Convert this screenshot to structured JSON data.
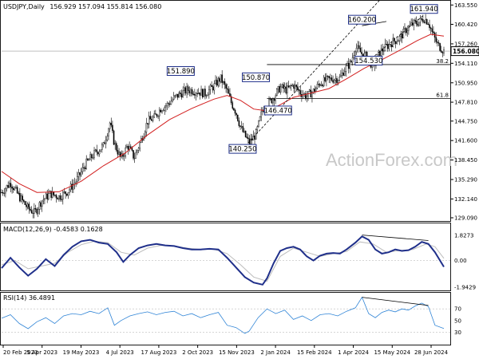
{
  "chart_data": {
    "type": "candlestick",
    "title": "USDJPY,Daily",
    "ohlc_readout": "156.929 157.094 155.814 156.080",
    "current_price": "156.080",
    "watermark": "ActionForex.com",
    "x_ticks": [
      "20 Feb 2023",
      "5 Apr 2023",
      "19 May 2023",
      "4 Jul 2023",
      "17 Aug 2023",
      "2 Oct 2023",
      "15 Nov 2023",
      "2 Jan 2024",
      "15 Feb 2024",
      "1 Apr 2024",
      "15 May 2024",
      "28 Jun 2024"
    ],
    "price_panel": {
      "y_ticks": [
        "163.550",
        "160.420",
        "157.260",
        "154.110",
        "150.950",
        "147.810",
        "144.750",
        "141.600",
        "138.450",
        "135.290",
        "132.140",
        "129.090"
      ],
      "ylim": [
        128.7,
        164.1
      ],
      "annotations": [
        {
          "label": "151.890",
          "value": 151.89,
          "anchor": 0.405
        },
        {
          "label": "140.250",
          "value": 140.25,
          "anchor": 0.545
        },
        {
          "label": "150.870",
          "value": 150.87,
          "anchor": 0.575
        },
        {
          "label": "146.470",
          "value": 146.47,
          "anchor": 0.625
        },
        {
          "label": "160.200",
          "value": 160.2,
          "anchor": 0.815
        },
        {
          "label": "154.530",
          "value": 154.53,
          "anchor": 0.83
        },
        {
          "label": "161.940",
          "value": 161.94,
          "anchor": 0.955
        }
      ],
      "fib_levels": [
        {
          "label": "38.2",
          "value": 153.9
        },
        {
          "label": "61.8",
          "value": 148.4
        }
      ],
      "series": [
        {
          "name": "Close",
          "color": "#000000",
          "points": [
            [
              0.0,
              133.2
            ],
            [
              0.02,
              134.8
            ],
            [
              0.04,
              132.5
            ],
            [
              0.06,
              130.6
            ],
            [
              0.075,
              129.9
            ],
            [
              0.09,
              131.8
            ],
            [
              0.11,
              133.0
            ],
            [
              0.13,
              132.5
            ],
            [
              0.15,
              133.4
            ],
            [
              0.17,
              135.2
            ],
            [
              0.19,
              137.8
            ],
            [
              0.21,
              139.5
            ],
            [
              0.23,
              140.7
            ],
            [
              0.245,
              144.5
            ],
            [
              0.255,
              141.1
            ],
            [
              0.27,
              138.6
            ],
            [
              0.285,
              140.8
            ],
            [
              0.3,
              138.8
            ],
            [
              0.315,
              141.6
            ],
            [
              0.33,
              144.7
            ],
            [
              0.345,
              145.3
            ],
            [
              0.36,
              146.8
            ],
            [
              0.375,
              147.4
            ],
            [
              0.39,
              148.5
            ],
            [
              0.405,
              149.2
            ],
            [
              0.42,
              149.8
            ],
            [
              0.44,
              149.6
            ],
            [
              0.46,
              149.2
            ],
            [
              0.48,
              150.4
            ],
            [
              0.495,
              151.7
            ],
            [
              0.51,
              149.6
            ],
            [
              0.52,
              147.6
            ],
            [
              0.53,
              146.2
            ],
            [
              0.54,
              143.8
            ],
            [
              0.55,
              142.4
            ],
            [
              0.56,
              141.2
            ],
            [
              0.575,
              142.6
            ],
            [
              0.59,
              146.6
            ],
            [
              0.6,
              147.3
            ],
            [
              0.615,
              148.6
            ],
            [
              0.63,
              150.2
            ],
            [
              0.645,
              149.8
            ],
            [
              0.66,
              150.6
            ],
            [
              0.675,
              149.4
            ],
            [
              0.69,
              148.8
            ],
            [
              0.705,
              149.6
            ],
            [
              0.72,
              150.9
            ],
            [
              0.735,
              151.4
            ],
            [
              0.75,
              151.6
            ],
            [
              0.765,
              151.7
            ],
            [
              0.775,
              153.1
            ],
            [
              0.79,
              154.2
            ],
            [
              0.8,
              156.8
            ],
            [
              0.815,
              155.6
            ],
            [
              0.825,
              155.2
            ],
            [
              0.84,
              153.5
            ],
            [
              0.855,
              155.9
            ],
            [
              0.87,
              156.8
            ],
            [
              0.885,
              157.6
            ],
            [
              0.9,
              158.2
            ],
            [
              0.915,
              159.6
            ],
            [
              0.93,
              160.5
            ],
            [
              0.945,
              160.8
            ],
            [
              0.955,
              161.4
            ],
            [
              0.965,
              160.8
            ],
            [
              0.975,
              158.8
            ],
            [
              0.985,
              157.2
            ],
            [
              1.0,
              156.1
            ]
          ]
        },
        {
          "name": "MA",
          "color": "#d21f1f",
          "points": [
            [
              0.0,
              136.6
            ],
            [
              0.04,
              134.6
            ],
            [
              0.08,
              133.2
            ],
            [
              0.13,
              133.3
            ],
            [
              0.18,
              135.0
            ],
            [
              0.23,
              137.5
            ],
            [
              0.28,
              139.6
            ],
            [
              0.33,
              142.5
            ],
            [
              0.38,
              145.0
            ],
            [
              0.43,
              146.8
            ],
            [
              0.48,
              148.3
            ],
            [
              0.51,
              148.9
            ],
            [
              0.54,
              148.1
            ],
            [
              0.57,
              146.7
            ],
            [
              0.6,
              146.4
            ],
            [
              0.63,
              147.4
            ],
            [
              0.66,
              148.6
            ],
            [
              0.7,
              149.3
            ],
            [
              0.74,
              150.0
            ],
            [
              0.78,
              151.6
            ],
            [
              0.82,
              153.3
            ],
            [
              0.86,
              154.7
            ],
            [
              0.9,
              156.2
            ],
            [
              0.94,
              157.8
            ],
            [
              0.97,
              158.8
            ],
            [
              1.0,
              158.5
            ]
          ]
        }
      ]
    },
    "macd_panel": {
      "label": "MACD(12,26,9) -0.4583 0.1628",
      "y_ticks": [
        "1.8273",
        "0.00",
        "-1.9429"
      ],
      "ylim": [
        -2.05,
        2.0
      ],
      "series": [
        {
          "name": "MACD",
          "color": "#1f2f8a",
          "points": [
            [
              0.0,
              -0.55
            ],
            [
              0.02,
              0.2
            ],
            [
              0.04,
              -0.5
            ],
            [
              0.06,
              -1.1
            ],
            [
              0.08,
              -0.6
            ],
            [
              0.1,
              0.1
            ],
            [
              0.12,
              -0.4
            ],
            [
              0.14,
              0.4
            ],
            [
              0.16,
              1.0
            ],
            [
              0.18,
              1.4
            ],
            [
              0.2,
              1.5
            ],
            [
              0.22,
              1.3
            ],
            [
              0.24,
              1.2
            ],
            [
              0.26,
              0.6
            ],
            [
              0.275,
              -0.1
            ],
            [
              0.29,
              0.4
            ],
            [
              0.31,
              0.9
            ],
            [
              0.33,
              1.1
            ],
            [
              0.35,
              1.2
            ],
            [
              0.37,
              1.1
            ],
            [
              0.39,
              1.05
            ],
            [
              0.41,
              0.9
            ],
            [
              0.43,
              0.8
            ],
            [
              0.45,
              0.8
            ],
            [
              0.47,
              0.85
            ],
            [
              0.49,
              0.8
            ],
            [
              0.51,
              0.2
            ],
            [
              0.53,
              -0.5
            ],
            [
              0.55,
              -1.2
            ],
            [
              0.57,
              -1.6
            ],
            [
              0.59,
              -1.75
            ],
            [
              0.6,
              -1.3
            ],
            [
              0.615,
              -0.2
            ],
            [
              0.63,
              0.7
            ],
            [
              0.645,
              0.9
            ],
            [
              0.66,
              1.0
            ],
            [
              0.675,
              0.8
            ],
            [
              0.69,
              0.3
            ],
            [
              0.705,
              0.0
            ],
            [
              0.72,
              0.35
            ],
            [
              0.735,
              0.5
            ],
            [
              0.75,
              0.55
            ],
            [
              0.765,
              0.5
            ],
            [
              0.78,
              0.8
            ],
            [
              0.8,
              1.3
            ],
            [
              0.815,
              1.75
            ],
            [
              0.83,
              1.5
            ],
            [
              0.845,
              0.8
            ],
            [
              0.86,
              0.5
            ],
            [
              0.875,
              0.6
            ],
            [
              0.89,
              0.8
            ],
            [
              0.905,
              0.7
            ],
            [
              0.92,
              0.75
            ],
            [
              0.935,
              1.0
            ],
            [
              0.95,
              1.35
            ],
            [
              0.965,
              1.2
            ],
            [
              0.98,
              0.6
            ],
            [
              1.0,
              -0.46
            ]
          ]
        },
        {
          "name": "Signal",
          "color": "#bdbdbd",
          "points": [
            [
              0.0,
              -0.3
            ],
            [
              0.03,
              0.0
            ],
            [
              0.06,
              -0.6
            ],
            [
              0.09,
              -0.4
            ],
            [
              0.12,
              -0.2
            ],
            [
              0.15,
              0.6
            ],
            [
              0.18,
              1.15
            ],
            [
              0.21,
              1.4
            ],
            [
              0.24,
              1.3
            ],
            [
              0.27,
              0.6
            ],
            [
              0.3,
              0.4
            ],
            [
              0.33,
              0.9
            ],
            [
              0.36,
              1.1
            ],
            [
              0.39,
              1.05
            ],
            [
              0.42,
              0.9
            ],
            [
              0.45,
              0.8
            ],
            [
              0.48,
              0.82
            ],
            [
              0.51,
              0.5
            ],
            [
              0.54,
              -0.3
            ],
            [
              0.57,
              -1.2
            ],
            [
              0.6,
              -1.5
            ],
            [
              0.63,
              0.3
            ],
            [
              0.66,
              0.9
            ],
            [
              0.69,
              0.6
            ],
            [
              0.72,
              0.3
            ],
            [
              0.75,
              0.5
            ],
            [
              0.78,
              0.65
            ],
            [
              0.81,
              1.35
            ],
            [
              0.84,
              1.2
            ],
            [
              0.87,
              0.6
            ],
            [
              0.9,
              0.72
            ],
            [
              0.93,
              0.8
            ],
            [
              0.96,
              1.2
            ],
            [
              0.98,
              1.0
            ],
            [
              1.0,
              0.16
            ]
          ]
        }
      ]
    },
    "rsi_panel": {
      "label": "RSI(14) 36.4891",
      "y_ticks": [
        "70",
        "50",
        "30"
      ],
      "ylim": [
        10,
        95
      ],
      "series": [
        {
          "name": "RSI",
          "color": "#2f84d6",
          "points": [
            [
              0.0,
              54
            ],
            [
              0.02,
              60
            ],
            [
              0.04,
              45
            ],
            [
              0.06,
              36
            ],
            [
              0.08,
              48
            ],
            [
              0.1,
              55
            ],
            [
              0.12,
              45
            ],
            [
              0.14,
              58
            ],
            [
              0.16,
              62
            ],
            [
              0.18,
              60
            ],
            [
              0.2,
              66
            ],
            [
              0.22,
              62
            ],
            [
              0.24,
              72
            ],
            [
              0.255,
              42
            ],
            [
              0.27,
              50
            ],
            [
              0.29,
              58
            ],
            [
              0.31,
              62
            ],
            [
              0.33,
              65
            ],
            [
              0.35,
              60
            ],
            [
              0.37,
              64
            ],
            [
              0.39,
              66
            ],
            [
              0.41,
              58
            ],
            [
              0.43,
              62
            ],
            [
              0.45,
              55
            ],
            [
              0.47,
              60
            ],
            [
              0.49,
              64
            ],
            [
              0.51,
              42
            ],
            [
              0.53,
              38
            ],
            [
              0.55,
              28
            ],
            [
              0.56,
              32
            ],
            [
              0.58,
              55
            ],
            [
              0.6,
              70
            ],
            [
              0.62,
              62
            ],
            [
              0.64,
              68
            ],
            [
              0.66,
              52
            ],
            [
              0.68,
              58
            ],
            [
              0.7,
              50
            ],
            [
              0.72,
              60
            ],
            [
              0.74,
              62
            ],
            [
              0.76,
              58
            ],
            [
              0.78,
              66
            ],
            [
              0.8,
              72
            ],
            [
              0.815,
              90
            ],
            [
              0.83,
              62
            ],
            [
              0.845,
              55
            ],
            [
              0.86,
              64
            ],
            [
              0.875,
              68
            ],
            [
              0.89,
              65
            ],
            [
              0.905,
              70
            ],
            [
              0.92,
              68
            ],
            [
              0.935,
              75
            ],
            [
              0.95,
              80
            ],
            [
              0.965,
              74
            ],
            [
              0.98,
              42
            ],
            [
              1.0,
              36.5
            ]
          ]
        }
      ]
    }
  }
}
